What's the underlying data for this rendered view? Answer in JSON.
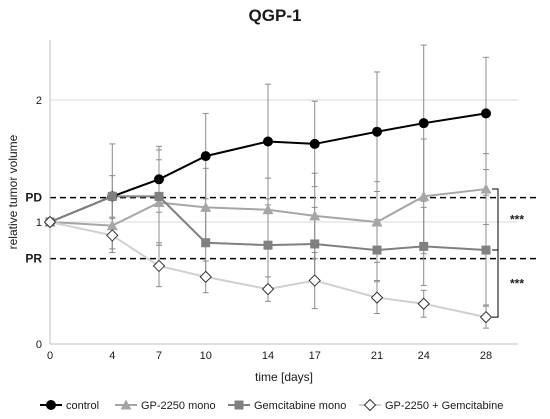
{
  "chart_data": {
    "type": "line",
    "title": "QGP-1",
    "xlabel": "time [days]",
    "ylabel": "relative tumor volume",
    "x": [
      0,
      4,
      7,
      10,
      14,
      17,
      21,
      24,
      28
    ],
    "x_tick_labels": [
      "0",
      "4",
      "7",
      "10",
      "14",
      "17",
      "21",
      "24",
      "28"
    ],
    "y_tick_labels": [
      "0",
      "1",
      "2"
    ],
    "ylim": [
      0,
      2.45
    ],
    "grid": "horizontal",
    "legend_position": "bottom",
    "reference_lines": [
      {
        "label": "PD",
        "value": 1.2
      },
      {
        "label": "PR",
        "value": 0.7
      }
    ],
    "significance": [
      {
        "label": "***",
        "between": [
          "GP-2250 mono",
          "Gemcitabine mono"
        ]
      },
      {
        "label": "***",
        "between": [
          "Gemcitabine mono",
          "GP-2250 + Gemcitabine"
        ]
      }
    ],
    "series": [
      {
        "name": "control",
        "marker": "circle-filled",
        "color": "#000000",
        "values": [
          1.0,
          1.21,
          1.35,
          1.54,
          1.66,
          1.64,
          1.74,
          1.81,
          1.89
        ],
        "error": [
          0.0,
          0.43,
          0.27,
          0.35,
          0.47,
          0.35,
          0.49,
          0.64,
          0.46
        ]
      },
      {
        "name": "GP-2250 mono",
        "marker": "triangle-filled",
        "color": "#a6a6a6",
        "values": [
          1.0,
          0.97,
          1.16,
          1.12,
          1.1,
          1.05,
          1.0,
          1.21,
          1.27
        ],
        "error": [
          0.0,
          0.22,
          0.35,
          0.32,
          0.26,
          0.35,
          0.33,
          0.47,
          0.29
        ]
      },
      {
        "name": "Gemcitabine mono",
        "marker": "square-filled",
        "color": "#808080",
        "values": [
          1.0,
          1.21,
          1.21,
          0.83,
          0.81,
          0.82,
          0.77,
          0.8,
          0.77
        ],
        "error": [
          0.0,
          0.17,
          0.38,
          0.28,
          0.33,
          0.3,
          0.25,
          0.32,
          0.45
        ]
      },
      {
        "name": "GP-2250 + Gemcitabine",
        "marker": "diamond-open",
        "color": "#d0d0d0",
        "values": [
          1.0,
          0.89,
          0.64,
          0.55,
          0.45,
          0.52,
          0.38,
          0.33,
          0.22
        ],
        "error": [
          0.0,
          0.14,
          0.17,
          0.13,
          0.1,
          0.23,
          0.13,
          0.11,
          0.09
        ]
      }
    ]
  }
}
